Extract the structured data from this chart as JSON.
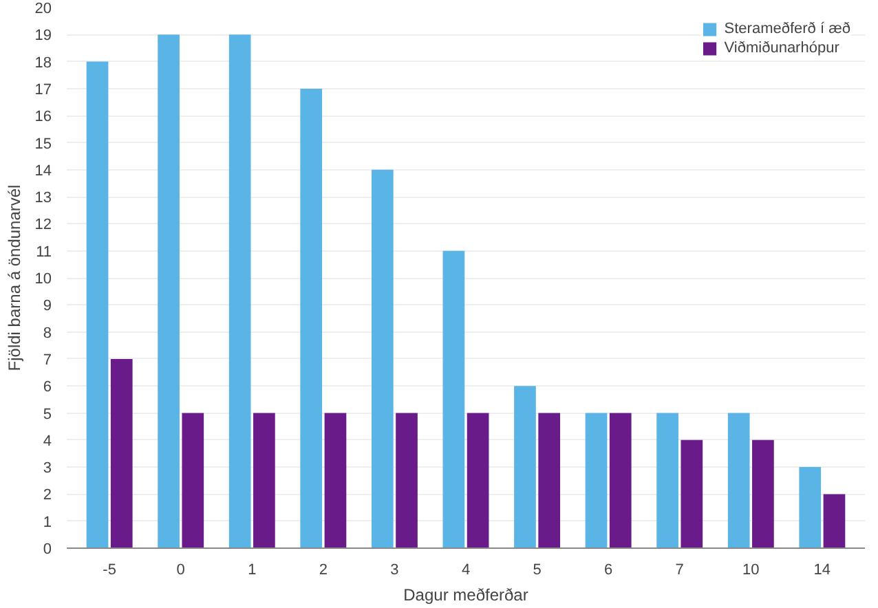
{
  "chart_data": {
    "type": "bar",
    "xlabel": "Dagur meðferðar",
    "ylabel": "Fjöldi barna á öndunarvél",
    "categories": [
      "-5",
      "0",
      "1",
      "2",
      "3",
      "4",
      "5",
      "6",
      "7",
      "10",
      "14"
    ],
    "series": [
      {
        "name": "Sterameðferð í æð",
        "color": "#5ab4e5",
        "values": [
          18,
          19,
          19,
          17,
          14,
          11,
          6,
          5,
          5,
          5,
          3
        ]
      },
      {
        "name": "Viðmiðunarhópur",
        "color": "#6a1b8a",
        "values": [
          7,
          5,
          5,
          5,
          5,
          5,
          5,
          5,
          4,
          4,
          2
        ]
      }
    ],
    "ylim": [
      0,
      20
    ],
    "yticks": [
      0,
      1,
      2,
      3,
      4,
      5,
      6,
      7,
      8,
      9,
      10,
      11,
      12,
      13,
      14,
      15,
      16,
      17,
      18,
      19,
      20
    ],
    "grid": "y",
    "legend": "top right"
  }
}
